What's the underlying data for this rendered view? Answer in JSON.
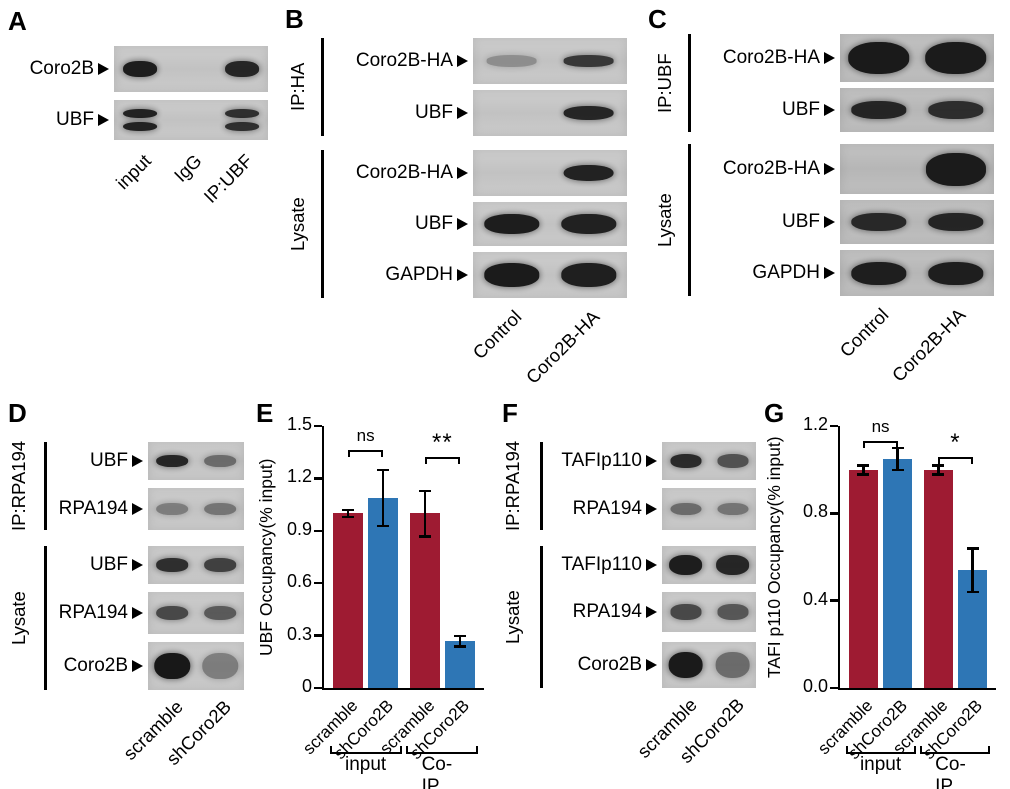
{
  "panels": {
    "A": {
      "letter": "A",
      "blots": [
        {
          "label": "Coro2B",
          "bands": [
            0.95,
            0,
            0.9
          ],
          "band_h": 0.34
        },
        {
          "label": "UBF",
          "bands": [
            0.92,
            0,
            0.85
          ],
          "band_h": 0.52,
          "double": true
        }
      ],
      "lanes": [
        "input",
        "IgG",
        "IP:UBF"
      ]
    },
    "B": {
      "letter": "B",
      "ip_label": "IP:HA",
      "lysate_label": "Lysate",
      "ip_blots": [
        {
          "label": "Coro2B-HA",
          "bands": [
            0.3,
            0.8
          ],
          "band_h": 0.24
        },
        {
          "label": "UBF",
          "bands": [
            0,
            0.9
          ],
          "band_h": 0.3
        }
      ],
      "lysate_blots": [
        {
          "label": "Coro2B-HA",
          "bands": [
            0,
            0.92
          ],
          "band_h": 0.36
        },
        {
          "label": "UBF",
          "bands": [
            0.95,
            0.93
          ],
          "band_h": 0.46,
          "band_w": 0.72
        },
        {
          "label": "GAPDH",
          "bands": [
            0.96,
            0.94
          ],
          "band_h": 0.52,
          "band_w": 0.72
        }
      ],
      "lanes": [
        "Control",
        "Coro2B-HA"
      ]
    },
    "C": {
      "letter": "C",
      "ip_label": "IP:UBF",
      "lysate_label": "Lysate",
      "ip_blots": [
        {
          "label": "Coro2B-HA",
          "bands": [
            0.97,
            0.96
          ],
          "band_h": 0.68,
          "band_w": 0.8
        },
        {
          "label": "UBF",
          "bands": [
            0.9,
            0.85
          ],
          "band_h": 0.4,
          "band_w": 0.72
        }
      ],
      "lysate_blots": [
        {
          "label": "Coro2B-HA",
          "bands": [
            0,
            0.96
          ],
          "band_h": 0.66,
          "band_w": 0.78
        },
        {
          "label": "UBF",
          "bands": [
            0.88,
            0.9
          ],
          "band_h": 0.42,
          "band_w": 0.72
        },
        {
          "label": "GAPDH",
          "bands": [
            0.94,
            0.94
          ],
          "band_h": 0.5,
          "band_w": 0.72
        }
      ],
      "lanes": [
        "Control",
        "Coro2B-HA"
      ]
    },
    "D": {
      "letter": "D",
      "ip_label": "IP:RPA194",
      "lysate_label": "Lysate",
      "ip_blots": [
        {
          "label": "UBF",
          "bands": [
            0.9,
            0.5
          ],
          "band_h": 0.32
        },
        {
          "label": "RPA194",
          "bands": [
            0.4,
            0.45
          ],
          "band_h": 0.3
        }
      ],
      "lysate_blots": [
        {
          "label": "UBF",
          "bands": [
            0.85,
            0.75
          ],
          "band_h": 0.36
        },
        {
          "label": "RPA194",
          "bands": [
            0.7,
            0.6
          ],
          "band_h": 0.34
        },
        {
          "label": "Coro2B",
          "bands": [
            0.98,
            0.4
          ],
          "band_h": 0.56,
          "band_w": 0.74
        }
      ],
      "lanes": [
        "scramble",
        "shCoro2B"
      ]
    },
    "E": {
      "letter": "E"
    },
    "F": {
      "letter": "F",
      "ip_label": "IP:RPA194",
      "lysate_label": "Lysate",
      "ip_blots": [
        {
          "label": "TAFIp110",
          "bands": [
            0.88,
            0.65
          ],
          "band_h": 0.36
        },
        {
          "label": "RPA194",
          "bands": [
            0.5,
            0.45
          ],
          "band_h": 0.3
        }
      ],
      "lysate_blots": [
        {
          "label": "TAFIp110",
          "bands": [
            0.95,
            0.9
          ],
          "band_h": 0.52,
          "band_w": 0.72
        },
        {
          "label": "RPA194",
          "bands": [
            0.7,
            0.62
          ],
          "band_h": 0.38
        },
        {
          "label": "Coro2B",
          "bands": [
            0.97,
            0.5
          ],
          "band_h": 0.58,
          "band_w": 0.74
        }
      ],
      "lanes": [
        "scramble",
        "shCoro2B"
      ]
    },
    "G": {
      "letter": "G"
    }
  },
  "chart_data": [
    {
      "type": "bar",
      "panel": "E",
      "ylabel": "UBF Occupancy(% input)",
      "ylim": [
        0,
        1.5
      ],
      "yticks": [
        "0",
        "0.3",
        "0.6",
        "0.9",
        "1.2",
        "1.5"
      ],
      "categories": [
        "scramble",
        "shCoro2B",
        "scramble",
        "shCoro2B"
      ],
      "values": [
        1.0,
        1.09,
        1.0,
        0.27
      ],
      "errors": [
        0.02,
        0.16,
        0.13,
        0.03
      ],
      "colors": [
        "#9e1b32",
        "#2e76b5",
        "#9e1b32",
        "#2e76b5"
      ],
      "group_labels": [
        {
          "label": "input",
          "from": 0,
          "to": 1
        },
        {
          "label": "Co-IP",
          "from": 2,
          "to": 3
        }
      ],
      "annotations": [
        {
          "text": "ns",
          "from": 0,
          "to": 1,
          "y": 1.36
        },
        {
          "text": "**",
          "from": 2,
          "to": 3,
          "y": 1.32
        }
      ]
    },
    {
      "type": "bar",
      "panel": "G",
      "ylabel": "TAFI p110 Occupancy(% input)",
      "ylim": [
        0,
        1.2
      ],
      "yticks": [
        "0.0",
        "0.4",
        "0.8",
        "1.2"
      ],
      "categories": [
        "scramble",
        "shCoro2B",
        "scramble",
        "shCoro2B"
      ],
      "values": [
        1.0,
        1.05,
        1.0,
        0.54
      ],
      "errors": [
        0.02,
        0.05,
        0.02,
        0.1
      ],
      "colors": [
        "#9e1b32",
        "#2e76b5",
        "#9e1b32",
        "#2e76b5"
      ],
      "group_labels": [
        {
          "label": "input",
          "from": 0,
          "to": 1
        },
        {
          "label": "Co-IP",
          "from": 2,
          "to": 3
        }
      ],
      "annotations": [
        {
          "text": "ns",
          "from": 0,
          "to": 1,
          "y": 1.13
        },
        {
          "text": "*",
          "from": 2,
          "to": 3,
          "y": 1.06
        }
      ]
    }
  ]
}
